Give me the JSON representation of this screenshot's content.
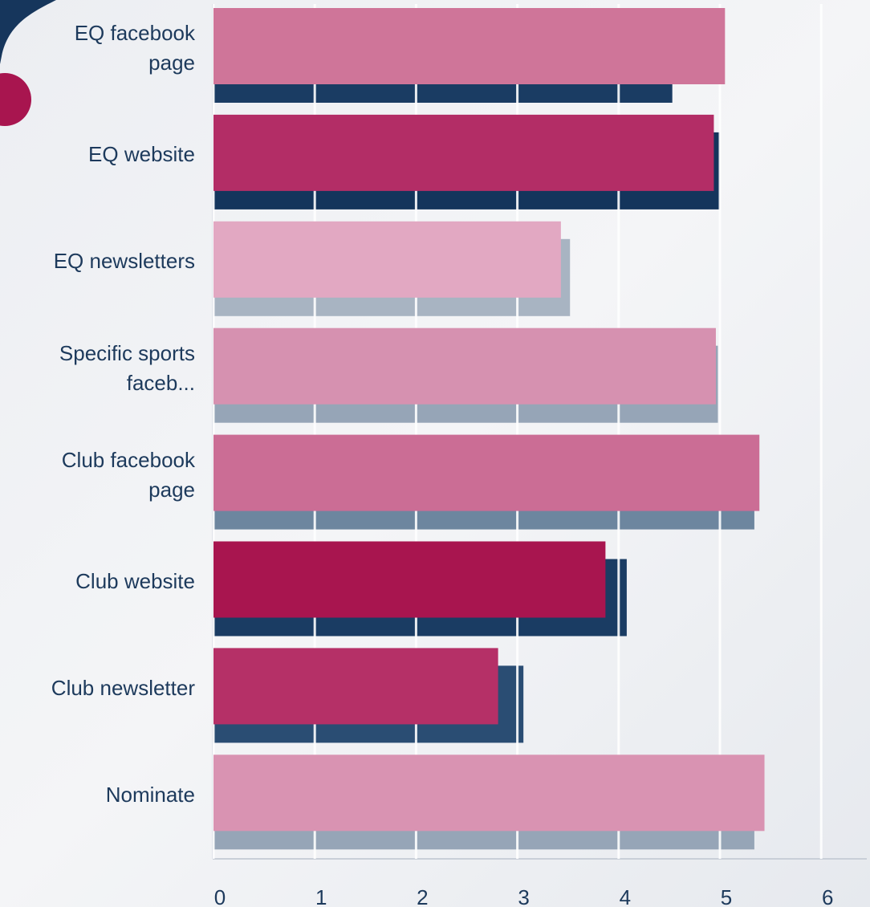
{
  "chart_data": {
    "type": "bar",
    "orientation": "horizontal",
    "categories": [
      "EQ facebook page",
      "EQ website",
      "EQ newsletters",
      "Specific sports faceb...",
      "Club facebook page",
      "Club website",
      "Club newsletter",
      "Nominate"
    ],
    "series": [
      {
        "colors": [
          "#1a3c63",
          "#14355c",
          "#a8b4c2",
          "#96a5b7",
          "#6d869f",
          "#1a3c63",
          "#2a4d73",
          "#96a5b7"
        ],
        "values": [
          4.53,
          5.0,
          3.52,
          4.98,
          5.34,
          4.08,
          3.06,
          5.34
        ]
      },
      {
        "colors": [
          "#cf7599",
          "#b32d66",
          "#e2a8c2",
          "#d691b0",
          "#cb6d95",
          "#a8154f",
          "#b53067",
          "#d993b2"
        ],
        "values": [
          5.05,
          4.94,
          3.43,
          4.96,
          5.39,
          3.87,
          2.81,
          5.44
        ]
      }
    ],
    "xlim": [
      0,
      6.4
    ],
    "xticks": [
      0,
      1,
      2,
      3,
      4,
      5,
      6
    ],
    "grid": true
  }
}
